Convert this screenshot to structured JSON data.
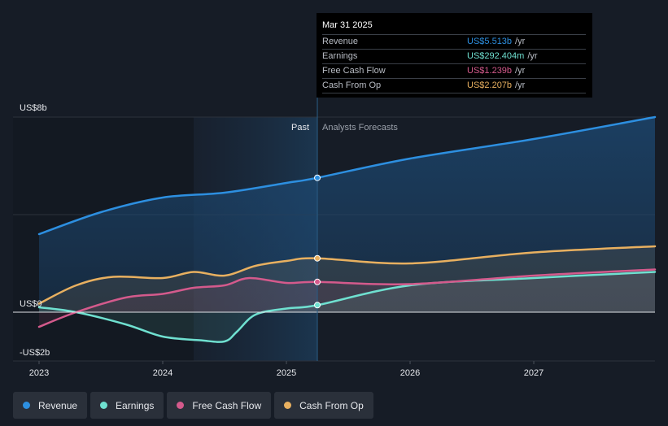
{
  "tooltip": {
    "date": "Mar 31 2025",
    "rows": [
      {
        "label": "Revenue",
        "value": "US$5.513b",
        "unit": "/yr",
        "color": "#2d8fe0"
      },
      {
        "label": "Earnings",
        "value": "US$292.404m",
        "unit": "/yr",
        "color": "#6fe0d0"
      },
      {
        "label": "Free Cash Flow",
        "value": "US$1.239b",
        "unit": "/yr",
        "color": "#d45a8c"
      },
      {
        "label": "Cash From Op",
        "value": "US$2.207b",
        "unit": "/yr",
        "color": "#e8b060"
      }
    ]
  },
  "chart_data": {
    "type": "line",
    "title": "",
    "xlabel": "",
    "ylabel": "",
    "x_ticks": [
      2023,
      2024,
      2025,
      2026,
      2027
    ],
    "x_range": [
      2023.0,
      2027.98
    ],
    "y_ticks": [
      {
        "value": 8,
        "label": "US$8b"
      },
      {
        "value": 0,
        "label": "US$0"
      },
      {
        "value": -2,
        "label": "-US$2b"
      }
    ],
    "ylim": [
      -2,
      8
    ],
    "past_label": "Past",
    "forecast_label": "Analysts Forecasts",
    "past_region_start": 2024.25,
    "divider_x": 2025.25,
    "series": [
      {
        "name": "Revenue",
        "color": "#2d8fe0",
        "past": [
          [
            2023.0,
            3.2
          ],
          [
            2023.5,
            4.1
          ],
          [
            2024.0,
            4.7
          ],
          [
            2024.5,
            4.9
          ],
          [
            2025.0,
            5.3
          ],
          [
            2025.25,
            5.51
          ]
        ],
        "forecast": [
          [
            2025.25,
            5.51
          ],
          [
            2026.0,
            6.3
          ],
          [
            2027.0,
            7.1
          ],
          [
            2027.98,
            8.0
          ]
        ]
      },
      {
        "name": "Earnings",
        "color": "#6fe0d0",
        "past": [
          [
            2023.0,
            0.2
          ],
          [
            2023.3,
            0.0
          ],
          [
            2023.7,
            -0.5
          ],
          [
            2024.0,
            -1.0
          ],
          [
            2024.3,
            -1.15
          ],
          [
            2024.5,
            -1.2
          ],
          [
            2024.6,
            -0.8
          ],
          [
            2024.75,
            -0.1
          ],
          [
            2025.0,
            0.15
          ],
          [
            2025.25,
            0.29
          ]
        ],
        "forecast": [
          [
            2025.25,
            0.29
          ],
          [
            2026.0,
            1.1
          ],
          [
            2027.0,
            1.4
          ],
          [
            2027.98,
            1.65
          ]
        ]
      },
      {
        "name": "Free Cash Flow",
        "color": "#d45a8c",
        "past": [
          [
            2023.0,
            -0.6
          ],
          [
            2023.3,
            0.0
          ],
          [
            2023.7,
            0.6
          ],
          [
            2024.0,
            0.75
          ],
          [
            2024.25,
            1.0
          ],
          [
            2024.5,
            1.1
          ],
          [
            2024.7,
            1.4
          ],
          [
            2025.0,
            1.2
          ],
          [
            2025.25,
            1.24
          ]
        ],
        "forecast": [
          [
            2025.25,
            1.24
          ],
          [
            2026.0,
            1.15
          ],
          [
            2027.0,
            1.5
          ],
          [
            2027.98,
            1.75
          ]
        ]
      },
      {
        "name": "Cash From Op",
        "color": "#e8b060",
        "past": [
          [
            2023.0,
            0.35
          ],
          [
            2023.3,
            1.1
          ],
          [
            2023.6,
            1.45
          ],
          [
            2024.0,
            1.4
          ],
          [
            2024.25,
            1.65
          ],
          [
            2024.5,
            1.5
          ],
          [
            2024.75,
            1.9
          ],
          [
            2025.0,
            2.1
          ],
          [
            2025.25,
            2.21
          ]
        ],
        "forecast": [
          [
            2025.25,
            2.21
          ],
          [
            2026.0,
            2.0
          ],
          [
            2027.0,
            2.45
          ],
          [
            2027.98,
            2.7
          ]
        ]
      }
    ]
  },
  "legend": [
    {
      "label": "Revenue",
      "color": "#2d8fe0"
    },
    {
      "label": "Earnings",
      "color": "#6fe0d0"
    },
    {
      "label": "Free Cash Flow",
      "color": "#d45a8c"
    },
    {
      "label": "Cash From Op",
      "color": "#e8b060"
    }
  ]
}
